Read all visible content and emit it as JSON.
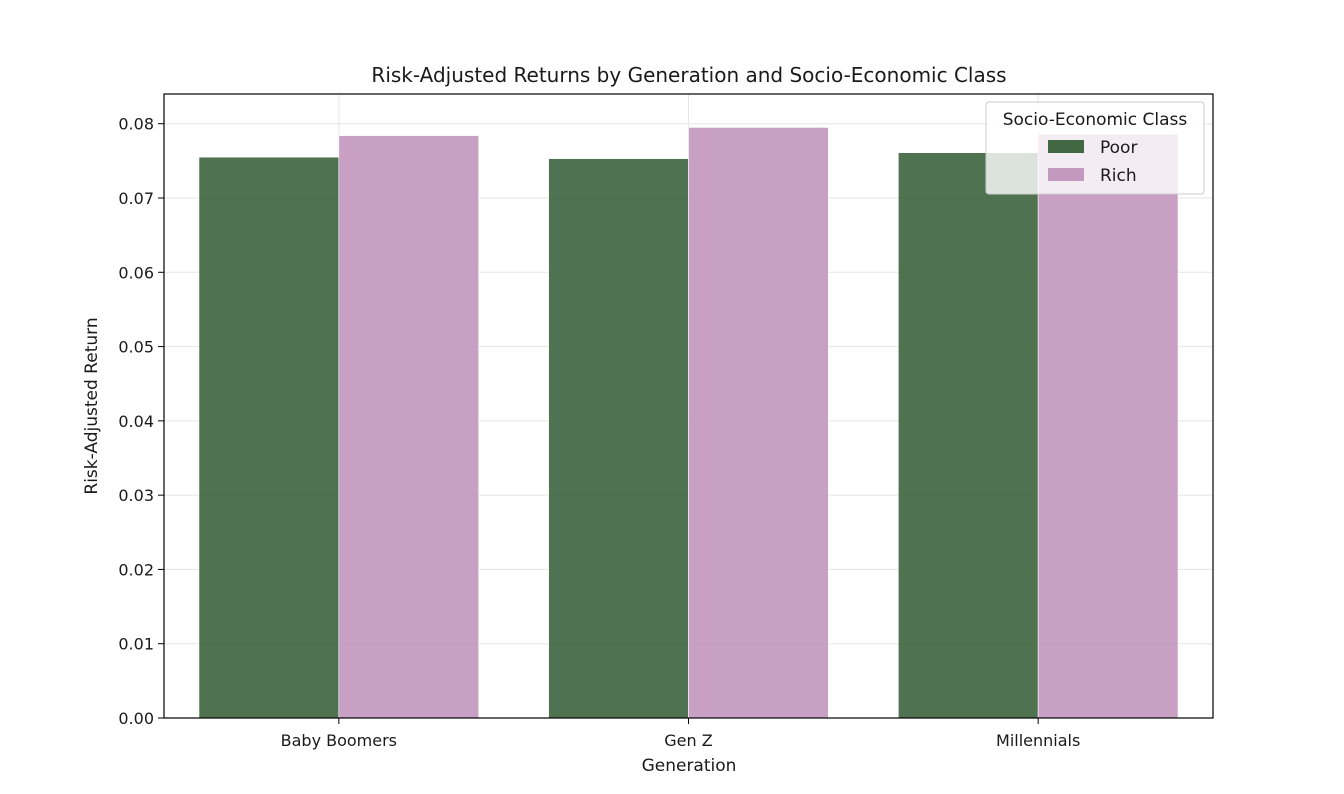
{
  "chart_data": {
    "type": "bar",
    "title": "Risk-Adjusted Returns by Generation and Socio-Economic Class",
    "xlabel": "Generation",
    "ylabel": "Risk-Adjusted Return",
    "categories": [
      "Baby Boomers",
      "Gen Z",
      "Millennials"
    ],
    "series": [
      {
        "name": "Poor",
        "color": "#426843",
        "values": [
          0.0755,
          0.0753,
          0.0761
        ]
      },
      {
        "name": "Rich",
        "color": "#c399c0",
        "values": [
          0.0784,
          0.0795,
          0.0786
        ]
      }
    ],
    "ylim": [
      0,
      0.084
    ],
    "yticks": [
      0.0,
      0.01,
      0.02,
      0.03,
      0.04,
      0.05,
      0.06,
      0.07,
      0.08
    ],
    "ytick_labels": [
      "0.00",
      "0.01",
      "0.02",
      "0.03",
      "0.04",
      "0.05",
      "0.06",
      "0.07",
      "0.08"
    ],
    "grid": true,
    "legend": {
      "title": "Socio-Economic Class",
      "position": "top-right"
    }
  }
}
